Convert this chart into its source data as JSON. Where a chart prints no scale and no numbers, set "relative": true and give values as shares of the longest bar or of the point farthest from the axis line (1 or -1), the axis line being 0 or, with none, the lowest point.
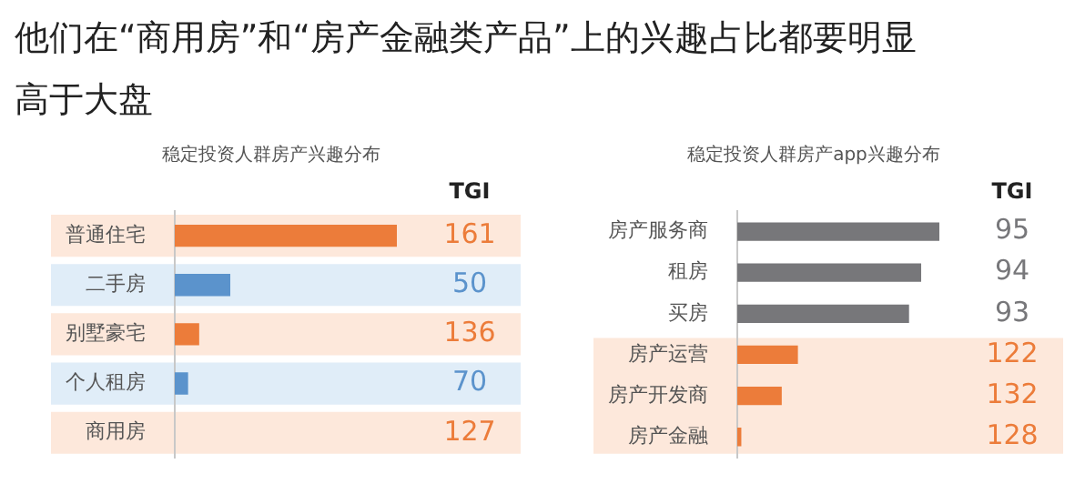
{
  "chart_data": [
    {
      "type": "bar",
      "orientation": "horizontal",
      "relative": true,
      "title": "稳定投资人群房产兴趣分布",
      "categories": [
        "普通住宅",
        "二手房",
        "别墅豪宅",
        "个人租房",
        "商用房"
      ],
      "values": [
        1,
        0.25,
        0.11,
        0.06,
        0
      ],
      "colors": [
        "#ec7c3a",
        "#5b93cc",
        "#ec7c3a",
        "#5b93cc",
        "#ec7c3a"
      ],
      "bands": [
        {
          "axis": "y",
          "from": "普通住宅",
          "to": "普通住宅",
          "color": "#fde8db"
        },
        {
          "axis": "y",
          "from": "二手房",
          "to": "二手房",
          "color": "#e0edf8"
        },
        {
          "axis": "y",
          "from": "别墅豪宅",
          "to": "别墅豪宅",
          "color": "#fde8db"
        },
        {
          "axis": "y",
          "from": "个人租房",
          "to": "个人租房",
          "color": "#e0edf8"
        },
        {
          "axis": "y",
          "from": "商用房",
          "to": "商用房",
          "color": "#fde8db"
        }
      ],
      "annotations": [
        "他们在“商用房”和“房产金融类产品”上的兴趣占比都要明显高于大盘",
        "TGI",
        "161",
        "50",
        "136",
        "70",
        "127"
      ]
    },
    {
      "type": "bar",
      "orientation": "horizontal",
      "relative": true,
      "title": "稳定投资人群房产app兴趣分布",
      "categories": [
        "房产服务商",
        "租房",
        "买房",
        "房产运营",
        "房产开发商",
        "房产金融"
      ],
      "values": [
        1,
        0.91,
        0.85,
        0.3,
        0.22,
        0.02
      ],
      "colors": [
        "#77777a",
        "#77777a",
        "#77777a",
        "#ec7c3a",
        "#ec7c3a",
        "#ec7c3a"
      ],
      "bands": [
        {
          "axis": "y",
          "from": "房产运营",
          "to": "房产金融",
          "color": "#fde8db"
        }
      ],
      "annotations": [
        "TGI",
        "95",
        "94",
        "93",
        "122",
        "132",
        "128"
      ]
    }
  ]
}
